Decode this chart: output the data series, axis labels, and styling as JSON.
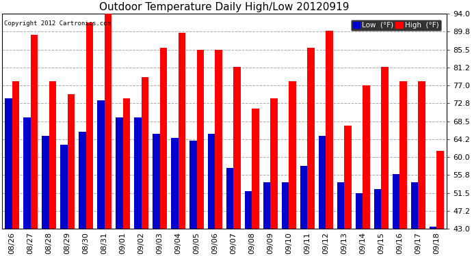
{
  "title": "Outdoor Temperature Daily High/Low 20120919",
  "copyright": "Copyright 2012 Cartronics.com",
  "ylabel_right_ticks": [
    43.0,
    47.2,
    51.5,
    55.8,
    60.0,
    64.2,
    68.5,
    72.8,
    77.0,
    81.2,
    85.5,
    89.8,
    94.0
  ],
  "dates": [
    "08/26",
    "08/27",
    "08/28",
    "08/29",
    "08/30",
    "08/31",
    "09/01",
    "09/02",
    "09/03",
    "09/04",
    "09/05",
    "09/06",
    "09/07",
    "09/08",
    "09/09",
    "09/10",
    "09/11",
    "09/12",
    "09/13",
    "09/14",
    "09/15",
    "09/16",
    "09/17",
    "09/18"
  ],
  "highs": [
    78.0,
    89.0,
    78.0,
    75.0,
    92.0,
    94.5,
    74.0,
    79.0,
    86.0,
    89.5,
    85.5,
    85.5,
    81.5,
    71.5,
    74.0,
    78.0,
    86.0,
    90.0,
    67.5,
    77.0,
    81.5,
    78.0,
    78.0,
    61.5
  ],
  "lows": [
    74.0,
    69.5,
    65.0,
    63.0,
    66.0,
    73.5,
    69.5,
    69.5,
    65.5,
    64.5,
    64.0,
    65.5,
    57.5,
    52.0,
    54.0,
    54.0,
    58.0,
    65.0,
    54.0,
    51.5,
    52.5,
    56.0,
    54.0,
    43.5
  ],
  "high_color": "#ff0000",
  "low_color": "#0000cc",
  "bg_color": "#ffffff",
  "plot_bg_color": "#ffffff",
  "grid_color": "#aaaaaa",
  "title_fontsize": 11,
  "tick_fontsize": 8,
  "legend_low_label": "Low  (°F)",
  "legend_high_label": "High  (°F)",
  "ylim_min": 43.0,
  "ylim_max": 94.0,
  "bar_width": 0.38
}
